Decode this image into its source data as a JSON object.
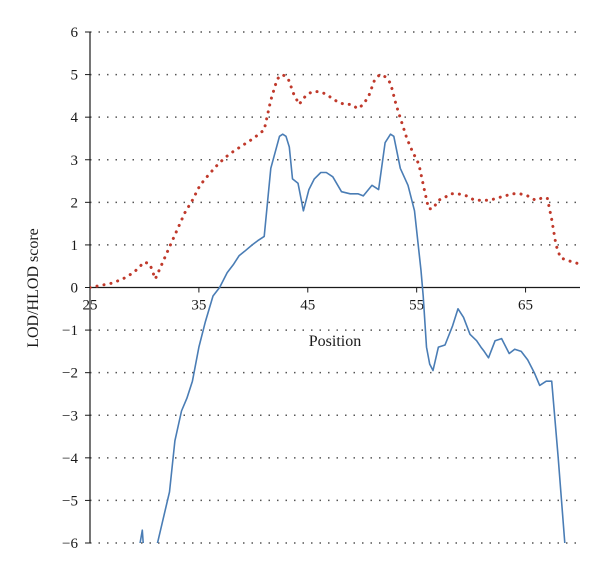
{
  "chart_data": {
    "type": "line",
    "xlabel": "Position",
    "ylabel": "LOD/HLOD score",
    "xlim": [
      25,
      70
    ],
    "ylim": [
      -6,
      6
    ],
    "x_ticks": [
      25,
      35,
      45,
      55,
      65
    ],
    "x_tick_labels": [
      "25",
      "35",
      "45",
      "55",
      "65"
    ],
    "y_ticks": [
      -6,
      -5,
      -4,
      -3,
      -2,
      -1,
      0,
      1,
      2,
      3,
      4,
      5,
      6
    ],
    "y_tick_labels": [
      "−6",
      "−5",
      "−4",
      "−3",
      "−2",
      "−1",
      "0",
      "1",
      "2",
      "3",
      "4",
      "5",
      "6"
    ],
    "grid": "horizontal dotted",
    "legend": "none",
    "colors": {
      "solid": "#4a7db5",
      "dotted": "#c0392b",
      "grid": "#555555",
      "axis": "#1a1a1a"
    },
    "series": [
      {
        "style": "solid",
        "color": "#4a7db5",
        "x": [
          29.6,
          29.8,
          30.0,
          31.2,
          32.3,
          32.8,
          33.4,
          33.9,
          34.4,
          35.0,
          35.6,
          36.3,
          36.9,
          37.6,
          38.2,
          38.7,
          39.2,
          39.9,
          40.4,
          41.0,
          41.6,
          42.4,
          42.7,
          43.0,
          43.3,
          43.6,
          44.1,
          44.6,
          45.1,
          45.6,
          46.2,
          46.7,
          47.3,
          48.1,
          48.9,
          49.6,
          50.1,
          50.9,
          51.5,
          52.1,
          52.6,
          52.9,
          53.5,
          54.2,
          54.8,
          55.4,
          55.6,
          55.9,
          56.2,
          56.5,
          57.0,
          57.6,
          58.3,
          58.8,
          59.3,
          59.9,
          60.5,
          60.9,
          61.2,
          61.6,
          62.2,
          62.8,
          63.5,
          64.0,
          64.6,
          65.2,
          65.8,
          66.3,
          66.9,
          67.4,
          68.0,
          68.6
        ],
        "y": [
          -6.0,
          -5.7,
          -6.4,
          -6.0,
          -4.8,
          -3.6,
          -2.9,
          -2.6,
          -2.2,
          -1.4,
          -0.8,
          -0.2,
          0.0,
          0.35,
          0.55,
          0.75,
          0.85,
          1.0,
          1.1,
          1.2,
          2.8,
          3.55,
          3.6,
          3.55,
          3.3,
          2.55,
          2.45,
          1.8,
          2.3,
          2.55,
          2.7,
          2.7,
          2.6,
          2.25,
          2.2,
          2.2,
          2.15,
          2.4,
          2.3,
          3.4,
          3.6,
          3.55,
          2.8,
          2.4,
          1.8,
          0.4,
          -0.2,
          -1.4,
          -1.8,
          -1.95,
          -1.4,
          -1.35,
          -0.9,
          -0.5,
          -0.7,
          -1.1,
          -1.25,
          -1.4,
          -1.5,
          -1.65,
          -1.25,
          -1.2,
          -1.55,
          -1.45,
          -1.5,
          -1.7,
          -2.0,
          -2.3,
          -2.2,
          -2.2,
          -4.0,
          -6.0
        ]
      },
      {
        "style": "dotted",
        "color": "#c0392b",
        "x": [
          25.0,
          26.0,
          27.0,
          28.0,
          29.0,
          30.0,
          30.5,
          31.0,
          31.6,
          32.3,
          33.0,
          33.7,
          34.4,
          35.1,
          35.9,
          36.6,
          37.4,
          38.2,
          39.1,
          40.0,
          41.0,
          41.6,
          42.2,
          42.7,
          43.2,
          43.7,
          44.2,
          44.8,
          45.4,
          46.0,
          46.6,
          47.2,
          47.8,
          48.4,
          49.0,
          49.6,
          50.1,
          50.6,
          51.1,
          51.6,
          52.1,
          52.6,
          53.1,
          53.6,
          54.1,
          54.6,
          55.2,
          55.7,
          56.1,
          56.5,
          57.0,
          57.5,
          58.1,
          58.8,
          59.6,
          60.3,
          61.0,
          61.7,
          62.4,
          63.1,
          63.8,
          64.5,
          65.2,
          65.9,
          66.5,
          67.0,
          67.4,
          67.8,
          68.2,
          68.7,
          69.3,
          70.0
        ],
        "y": [
          0.0,
          0.05,
          0.1,
          0.2,
          0.35,
          0.6,
          0.55,
          0.2,
          0.55,
          0.95,
          1.35,
          1.75,
          2.05,
          2.4,
          2.65,
          2.85,
          3.05,
          3.2,
          3.35,
          3.5,
          3.7,
          4.4,
          4.9,
          5.0,
          4.9,
          4.55,
          4.3,
          4.5,
          4.6,
          4.6,
          4.55,
          4.45,
          4.35,
          4.3,
          4.3,
          4.2,
          4.3,
          4.5,
          4.85,
          5.0,
          4.95,
          4.8,
          4.3,
          3.9,
          3.5,
          3.2,
          2.9,
          2.3,
          1.85,
          1.85,
          2.05,
          2.1,
          2.2,
          2.2,
          2.15,
          2.05,
          2.05,
          2.05,
          2.1,
          2.15,
          2.2,
          2.2,
          2.15,
          2.05,
          2.1,
          2.1,
          1.6,
          1.0,
          0.7,
          0.65,
          0.6,
          0.55
        ]
      }
    ]
  }
}
